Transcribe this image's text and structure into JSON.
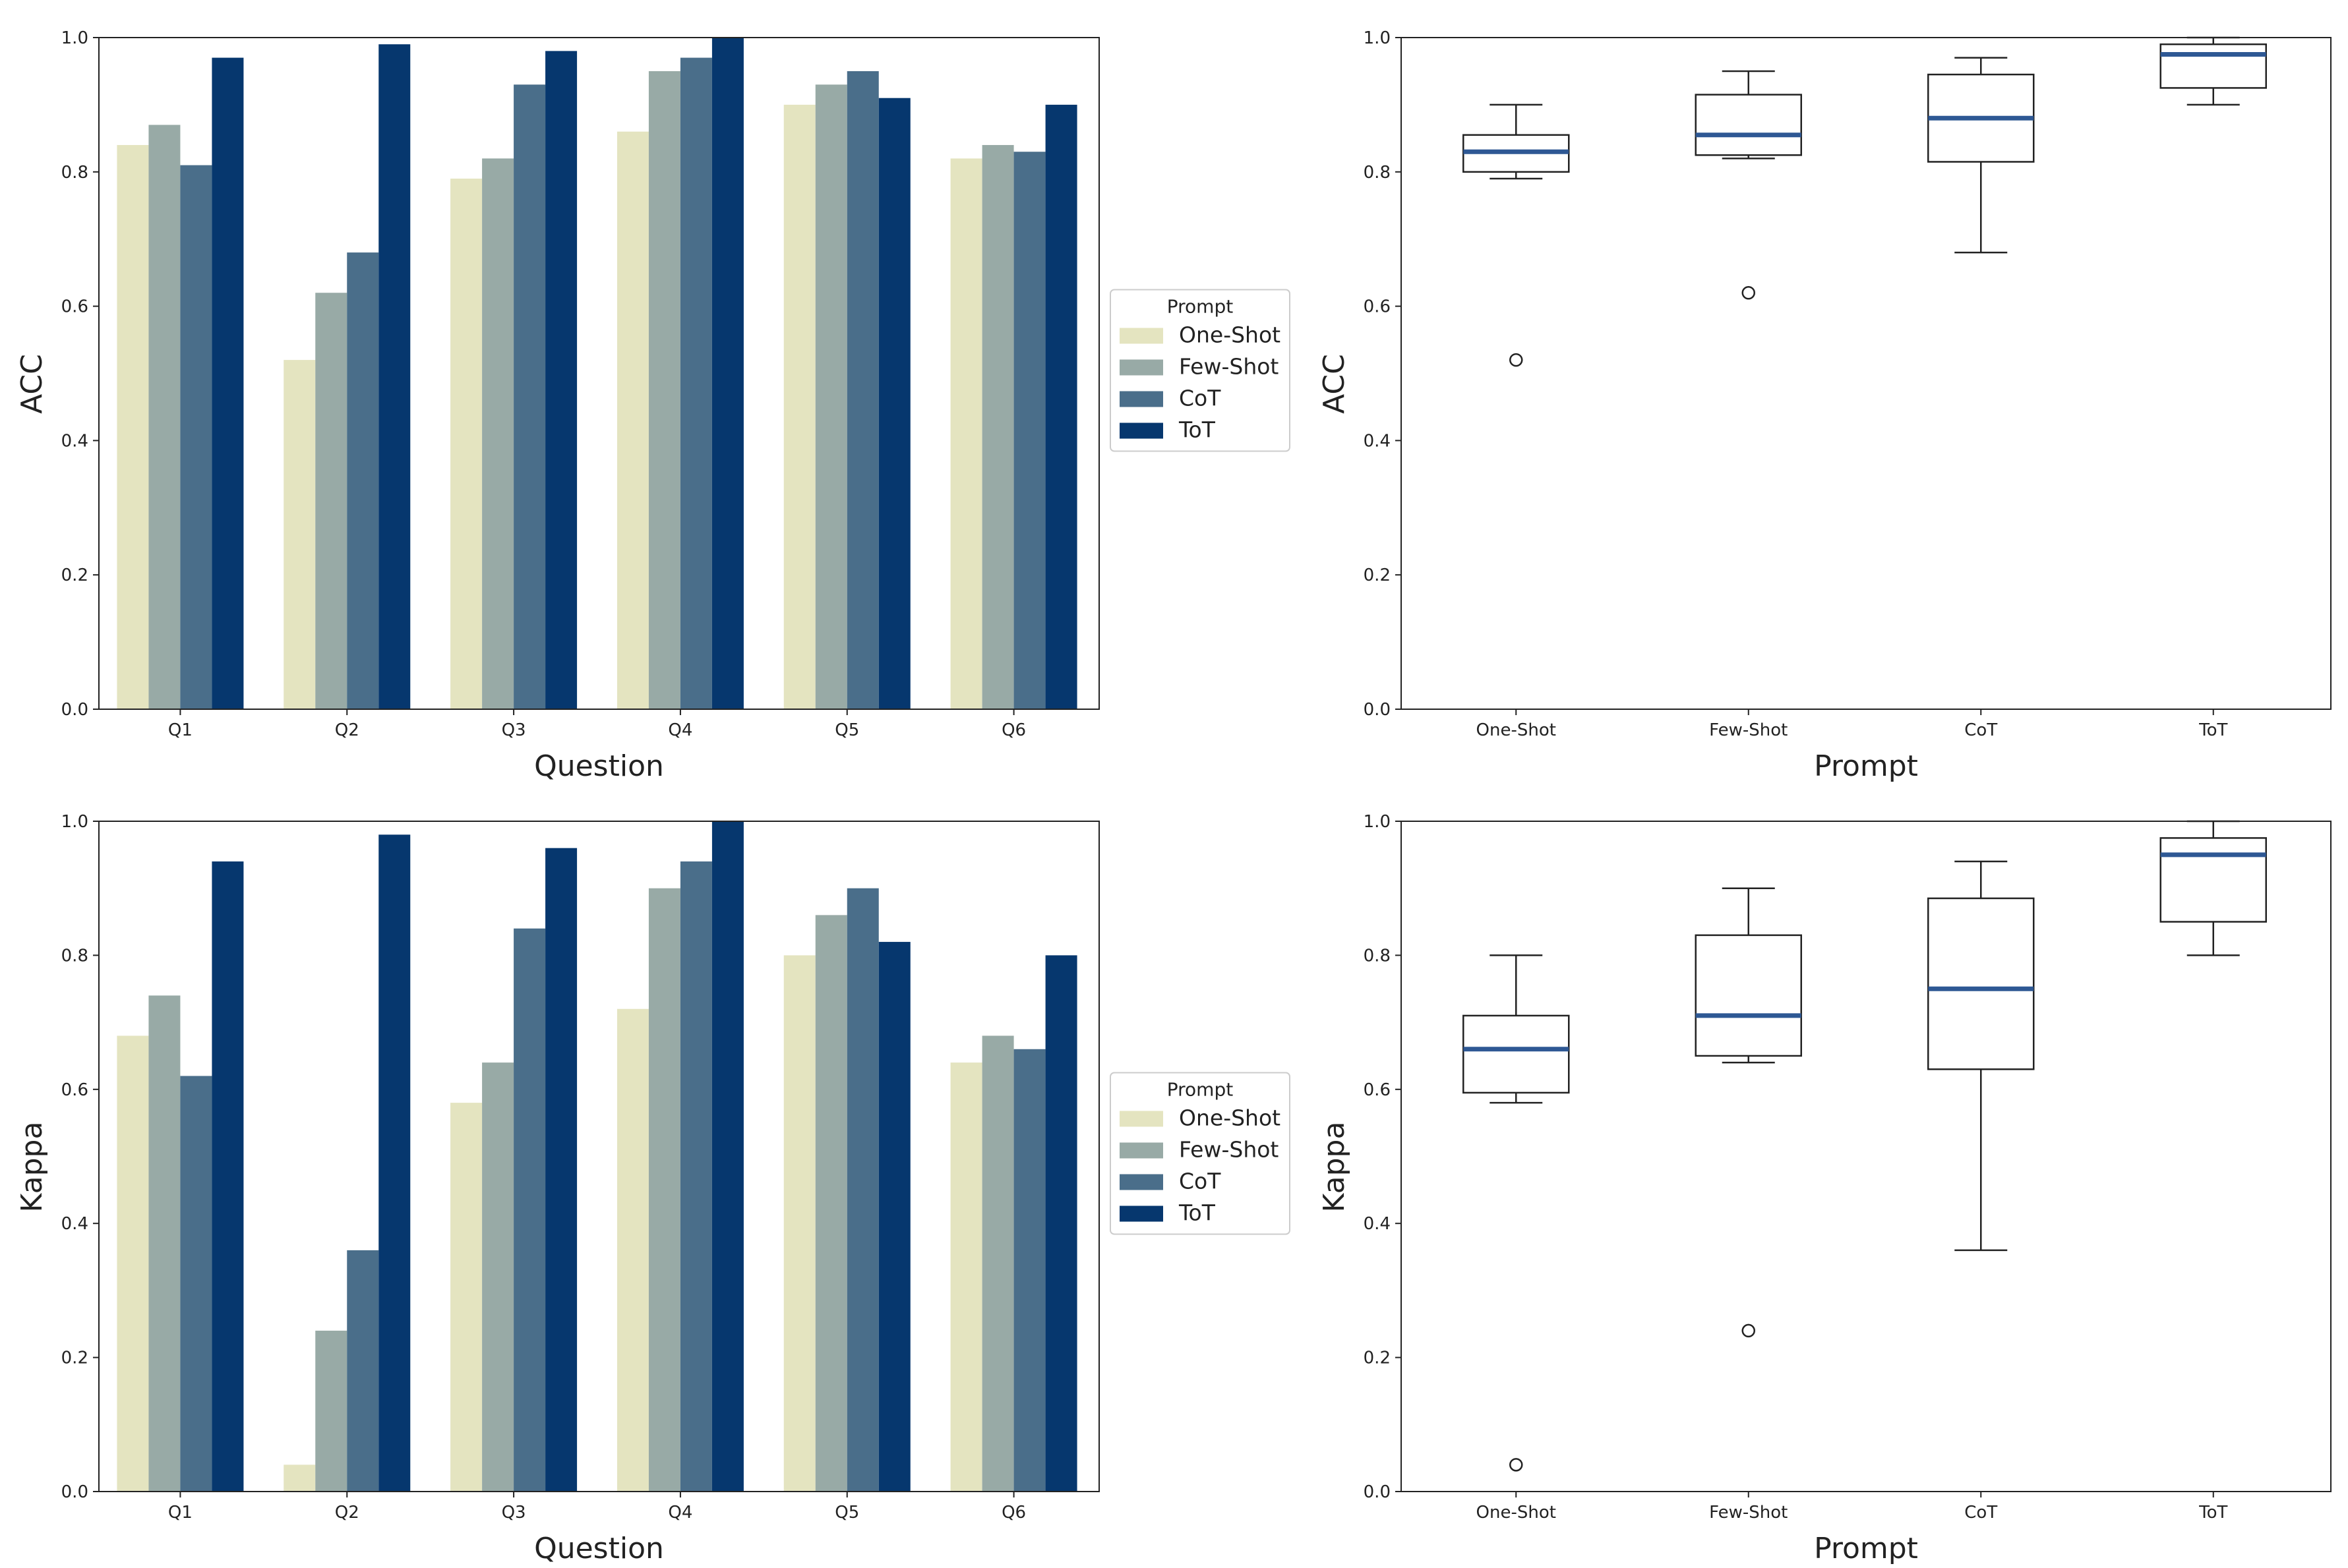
{
  "colors": {
    "One-Shot": "#e4e4c0",
    "Few-Shot": "#98aaa6",
    "CoT": "#4a6e8a",
    "ToT": "#06376e",
    "median": "#2e5894",
    "box": "#222222",
    "axis": "#222222"
  },
  "chart_data": [
    {
      "type": "bar",
      "xlabel": "Question",
      "ylabel": "ACC",
      "ylim": [
        0,
        1.0
      ],
      "yticks": [
        "0.0",
        "0.2",
        "0.4",
        "0.6",
        "0.8",
        "1.0"
      ],
      "categories": [
        "Q1",
        "Q2",
        "Q3",
        "Q4",
        "Q5",
        "Q6"
      ],
      "legend_title": "Prompt",
      "legend_location": "right",
      "series": [
        {
          "name": "One-Shot",
          "values": [
            0.84,
            0.52,
            0.79,
            0.86,
            0.9,
            0.82
          ]
        },
        {
          "name": "Few-Shot",
          "values": [
            0.87,
            0.62,
            0.82,
            0.95,
            0.93,
            0.84
          ]
        },
        {
          "name": "CoT",
          "values": [
            0.81,
            0.68,
            0.93,
            0.97,
            0.95,
            0.83
          ]
        },
        {
          "name": "ToT",
          "values": [
            0.97,
            0.99,
            0.98,
            1.0,
            0.91,
            0.9
          ]
        }
      ]
    },
    {
      "type": "box",
      "xlabel": "Prompt",
      "ylabel": "ACC",
      "ylim": [
        0,
        1.0
      ],
      "yticks": [
        "0.0",
        "0.2",
        "0.4",
        "0.6",
        "0.8",
        "1.0"
      ],
      "categories": [
        "One-Shot",
        "Few-Shot",
        "CoT",
        "ToT"
      ],
      "boxes": [
        {
          "name": "One-Shot",
          "whisker_low": 0.79,
          "q1": 0.8,
          "median": 0.83,
          "q3": 0.855,
          "whisker_high": 0.9,
          "outliers": [
            0.52
          ]
        },
        {
          "name": "Few-Shot",
          "whisker_low": 0.82,
          "q1": 0.825,
          "median": 0.855,
          "q3": 0.915,
          "whisker_high": 0.95,
          "outliers": [
            0.62
          ]
        },
        {
          "name": "CoT",
          "whisker_low": 0.68,
          "q1": 0.815,
          "median": 0.88,
          "q3": 0.945,
          "whisker_high": 0.97,
          "outliers": []
        },
        {
          "name": "ToT",
          "whisker_low": 0.9,
          "q1": 0.925,
          "median": 0.975,
          "q3": 0.99,
          "whisker_high": 1.0,
          "outliers": []
        }
      ]
    },
    {
      "type": "bar",
      "xlabel": "Question",
      "ylabel": "Kappa",
      "ylim": [
        0,
        1.0
      ],
      "yticks": [
        "0.0",
        "0.2",
        "0.4",
        "0.6",
        "0.8",
        "1.0"
      ],
      "categories": [
        "Q1",
        "Q2",
        "Q3",
        "Q4",
        "Q5",
        "Q6"
      ],
      "legend_title": "Prompt",
      "legend_location": "right",
      "series": [
        {
          "name": "One-Shot",
          "values": [
            0.68,
            0.04,
            0.58,
            0.72,
            0.8,
            0.64
          ]
        },
        {
          "name": "Few-Shot",
          "values": [
            0.74,
            0.24,
            0.64,
            0.9,
            0.86,
            0.68
          ]
        },
        {
          "name": "CoT",
          "values": [
            0.62,
            0.36,
            0.84,
            0.94,
            0.9,
            0.66
          ]
        },
        {
          "name": "ToT",
          "values": [
            0.94,
            0.98,
            0.96,
            1.0,
            0.82,
            0.8
          ]
        }
      ]
    },
    {
      "type": "box",
      "xlabel": "Prompt",
      "ylabel": "Kappa",
      "ylim": [
        0,
        1.0
      ],
      "yticks": [
        "0.0",
        "0.2",
        "0.4",
        "0.6",
        "0.8",
        "1.0"
      ],
      "categories": [
        "One-Shot",
        "Few-Shot",
        "CoT",
        "ToT"
      ],
      "boxes": [
        {
          "name": "One-Shot",
          "whisker_low": 0.58,
          "q1": 0.595,
          "median": 0.66,
          "q3": 0.71,
          "whisker_high": 0.8,
          "outliers": [
            0.04
          ]
        },
        {
          "name": "Few-Shot",
          "whisker_low": 0.64,
          "q1": 0.65,
          "median": 0.71,
          "q3": 0.83,
          "whisker_high": 0.9,
          "outliers": [
            0.24
          ]
        },
        {
          "name": "CoT",
          "whisker_low": 0.36,
          "q1": 0.63,
          "median": 0.75,
          "q3": 0.885,
          "whisker_high": 0.94,
          "outliers": []
        },
        {
          "name": "ToT",
          "whisker_low": 0.8,
          "q1": 0.85,
          "median": 0.95,
          "q3": 0.975,
          "whisker_high": 1.0,
          "outliers": []
        }
      ]
    }
  ]
}
